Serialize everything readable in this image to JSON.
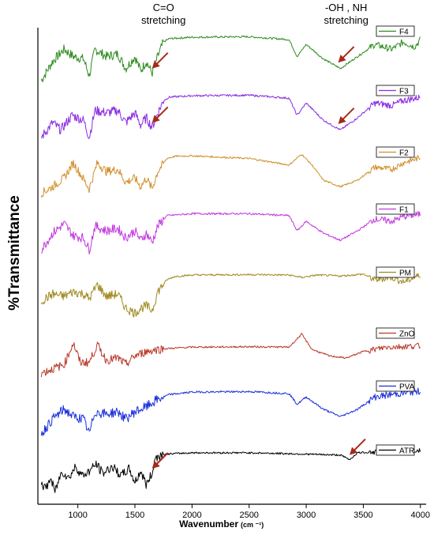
{
  "chart_data": {
    "type": "line",
    "title": "",
    "xlabel": "Wavenumber",
    "xlabel_unit": "(cm ⁻¹)",
    "ylabel": "%Transmittance",
    "xlim": [
      650,
      4050
    ],
    "x_ticks": [
      1000,
      1500,
      2000,
      2500,
      3000,
      3500,
      4000
    ],
    "legend_placement": "top-right of each trace",
    "grid": false,
    "annotations": [
      {
        "text_lines": [
          "C=O",
          "stretching"
        ],
        "x": 1750
      },
      {
        "text_lines": [
          "-OH , NH",
          "stretching"
        ],
        "x": 3350
      }
    ],
    "arrows": [
      {
        "series": "F4",
        "x": 1650
      },
      {
        "series": "F3",
        "x": 1650
      },
      {
        "series": "F4",
        "x": 3280
      },
      {
        "series": "F3",
        "x": 3280
      },
      {
        "series": "ATR",
        "x": 1650
      },
      {
        "series": "ATR",
        "x": 3380
      }
    ],
    "series": [
      {
        "name": "F4",
        "color": "#2e8b1e",
        "points": [
          [
            680,
            0.05
          ],
          [
            780,
            0.45
          ],
          [
            880,
            0.7
          ],
          [
            960,
            0.55
          ],
          [
            1050,
            0.5
          ],
          [
            1100,
            0.15
          ],
          [
            1150,
            0.7
          ],
          [
            1250,
            0.55
          ],
          [
            1350,
            0.6
          ],
          [
            1420,
            0.3
          ],
          [
            1500,
            0.55
          ],
          [
            1550,
            0.25
          ],
          [
            1600,
            0.45
          ],
          [
            1650,
            0.2
          ],
          [
            1700,
            0.55
          ],
          [
            1750,
            0.85
          ],
          [
            1800,
            0.92
          ],
          [
            2000,
            0.95
          ],
          [
            2500,
            0.96
          ],
          [
            2850,
            0.9
          ],
          [
            2920,
            0.55
          ],
          [
            3000,
            0.8
          ],
          [
            3150,
            0.5
          ],
          [
            3300,
            0.3
          ],
          [
            3450,
            0.55
          ],
          [
            3600,
            0.8
          ],
          [
            3750,
            0.7
          ],
          [
            3850,
            0.85
          ],
          [
            3950,
            0.75
          ],
          [
            4000,
            0.9
          ]
        ]
      },
      {
        "name": "F3",
        "color": "#8a2be2",
        "points": [
          [
            680,
            0.1
          ],
          [
            780,
            0.4
          ],
          [
            850,
            0.25
          ],
          [
            950,
            0.55
          ],
          [
            1050,
            0.45
          ],
          [
            1100,
            0.1
          ],
          [
            1150,
            0.65
          ],
          [
            1250,
            0.6
          ],
          [
            1350,
            0.65
          ],
          [
            1420,
            0.4
          ],
          [
            1500,
            0.6
          ],
          [
            1550,
            0.35
          ],
          [
            1600,
            0.5
          ],
          [
            1650,
            0.3
          ],
          [
            1700,
            0.6
          ],
          [
            1750,
            0.85
          ],
          [
            1800,
            0.92
          ],
          [
            2000,
            0.95
          ],
          [
            2500,
            0.96
          ],
          [
            2850,
            0.9
          ],
          [
            2920,
            0.55
          ],
          [
            3000,
            0.8
          ],
          [
            3150,
            0.45
          ],
          [
            3300,
            0.25
          ],
          [
            3450,
            0.5
          ],
          [
            3600,
            0.8
          ],
          [
            3750,
            0.75
          ],
          [
            3850,
            0.85
          ],
          [
            4000,
            0.92
          ]
        ]
      },
      {
        "name": "F2",
        "color": "#d08f2a",
        "points": [
          [
            680,
            0.1
          ],
          [
            780,
            0.25
          ],
          [
            880,
            0.45
          ],
          [
            960,
            0.8
          ],
          [
            1020,
            0.55
          ],
          [
            1100,
            0.2
          ],
          [
            1170,
            0.8
          ],
          [
            1250,
            0.6
          ],
          [
            1350,
            0.65
          ],
          [
            1420,
            0.35
          ],
          [
            1500,
            0.45
          ],
          [
            1550,
            0.25
          ],
          [
            1600,
            0.45
          ],
          [
            1650,
            0.2
          ],
          [
            1700,
            0.6
          ],
          [
            1780,
            0.9
          ],
          [
            1850,
            0.95
          ],
          [
            2000,
            0.96
          ],
          [
            2500,
            0.9
          ],
          [
            2850,
            0.75
          ],
          [
            2960,
            1.0
          ],
          [
            3050,
            0.75
          ],
          [
            3150,
            0.4
          ],
          [
            3300,
            0.25
          ],
          [
            3450,
            0.4
          ],
          [
            3600,
            0.7
          ],
          [
            3750,
            0.65
          ],
          [
            3850,
            0.8
          ],
          [
            4000,
            0.92
          ]
        ]
      },
      {
        "name": "F1",
        "color": "#c136e0",
        "points": [
          [
            680,
            0.2
          ],
          [
            780,
            0.55
          ],
          [
            880,
            0.75
          ],
          [
            960,
            0.5
          ],
          [
            1050,
            0.45
          ],
          [
            1100,
            0.2
          ],
          [
            1150,
            0.7
          ],
          [
            1250,
            0.6
          ],
          [
            1350,
            0.65
          ],
          [
            1420,
            0.45
          ],
          [
            1500,
            0.6
          ],
          [
            1550,
            0.4
          ],
          [
            1600,
            0.55
          ],
          [
            1650,
            0.35
          ],
          [
            1700,
            0.7
          ],
          [
            1780,
            0.92
          ],
          [
            2000,
            0.96
          ],
          [
            2500,
            0.96
          ],
          [
            2850,
            0.92
          ],
          [
            2920,
            0.6
          ],
          [
            3000,
            0.8
          ],
          [
            3150,
            0.55
          ],
          [
            3300,
            0.4
          ],
          [
            3450,
            0.6
          ],
          [
            3600,
            0.85
          ],
          [
            3750,
            0.8
          ],
          [
            3850,
            0.9
          ],
          [
            4000,
            0.95
          ]
        ]
      },
      {
        "name": "PM",
        "color": "#a08a20",
        "points": [
          [
            680,
            0.4
          ],
          [
            780,
            0.55
          ],
          [
            880,
            0.5
          ],
          [
            960,
            0.6
          ],
          [
            1050,
            0.55
          ],
          [
            1100,
            0.45
          ],
          [
            1170,
            0.75
          ],
          [
            1250,
            0.5
          ],
          [
            1350,
            0.55
          ],
          [
            1420,
            0.25
          ],
          [
            1500,
            0.15
          ],
          [
            1550,
            0.25
          ],
          [
            1600,
            0.3
          ],
          [
            1650,
            0.2
          ],
          [
            1700,
            0.6
          ],
          [
            1780,
            0.85
          ],
          [
            1850,
            0.92
          ],
          [
            2000,
            0.95
          ],
          [
            2500,
            0.96
          ],
          [
            2850,
            0.95
          ],
          [
            2960,
            0.9
          ],
          [
            3100,
            0.95
          ],
          [
            3300,
            0.93
          ],
          [
            3500,
            0.97
          ],
          [
            3600,
            0.85
          ],
          [
            3750,
            0.9
          ],
          [
            3850,
            0.8
          ],
          [
            4000,
            0.95
          ]
        ]
      },
      {
        "name": "ZnO",
        "color": "#b83a2a",
        "points": [
          [
            680,
            0.05
          ],
          [
            780,
            0.15
          ],
          [
            880,
            0.25
          ],
          [
            960,
            0.75
          ],
          [
            1020,
            0.3
          ],
          [
            1100,
            0.3
          ],
          [
            1170,
            0.7
          ],
          [
            1250,
            0.35
          ],
          [
            1350,
            0.4
          ],
          [
            1420,
            0.25
          ],
          [
            1500,
            0.45
          ],
          [
            1600,
            0.55
          ],
          [
            1700,
            0.6
          ],
          [
            1800,
            0.62
          ],
          [
            2000,
            0.65
          ],
          [
            2500,
            0.66
          ],
          [
            2850,
            0.65
          ],
          [
            2960,
            0.95
          ],
          [
            3050,
            0.6
          ],
          [
            3200,
            0.45
          ],
          [
            3350,
            0.4
          ],
          [
            3500,
            0.55
          ],
          [
            3700,
            0.65
          ],
          [
            4000,
            0.68
          ]
        ]
      },
      {
        "name": "PVA",
        "color": "#1a2fdb",
        "points": [
          [
            680,
            0.1
          ],
          [
            780,
            0.4
          ],
          [
            880,
            0.6
          ],
          [
            960,
            0.45
          ],
          [
            1050,
            0.4
          ],
          [
            1100,
            0.1
          ],
          [
            1150,
            0.55
          ],
          [
            1250,
            0.5
          ],
          [
            1350,
            0.55
          ],
          [
            1420,
            0.4
          ],
          [
            1500,
            0.55
          ],
          [
            1600,
            0.65
          ],
          [
            1700,
            0.8
          ],
          [
            1800,
            0.9
          ],
          [
            2000,
            0.95
          ],
          [
            2500,
            0.96
          ],
          [
            2850,
            0.92
          ],
          [
            2920,
            0.7
          ],
          [
            3000,
            0.85
          ],
          [
            3150,
            0.6
          ],
          [
            3300,
            0.45
          ],
          [
            3450,
            0.6
          ],
          [
            3600,
            0.85
          ],
          [
            3750,
            0.9
          ],
          [
            4000,
            0.97
          ]
        ]
      },
      {
        "name": "ATR",
        "color": "#000000",
        "points": [
          [
            680,
            0.3
          ],
          [
            720,
            0.15
          ],
          [
            760,
            0.4
          ],
          [
            800,
            0.1
          ],
          [
            860,
            0.55
          ],
          [
            920,
            0.4
          ],
          [
            980,
            0.65
          ],
          [
            1040,
            0.45
          ],
          [
            1100,
            0.55
          ],
          [
            1160,
            0.7
          ],
          [
            1220,
            0.5
          ],
          [
            1300,
            0.65
          ],
          [
            1380,
            0.45
          ],
          [
            1450,
            0.6
          ],
          [
            1500,
            0.3
          ],
          [
            1550,
            0.55
          ],
          [
            1600,
            0.25
          ],
          [
            1650,
            0.5
          ],
          [
            1680,
            0.85
          ],
          [
            1750,
            0.92
          ],
          [
            2000,
            0.95
          ],
          [
            2500,
            0.95
          ],
          [
            2850,
            0.93
          ],
          [
            3000,
            0.92
          ],
          [
            3300,
            0.9
          ],
          [
            3380,
            0.8
          ],
          [
            3450,
            0.95
          ],
          [
            3700,
            0.98
          ],
          [
            4000,
            1.0
          ]
        ]
      }
    ]
  }
}
